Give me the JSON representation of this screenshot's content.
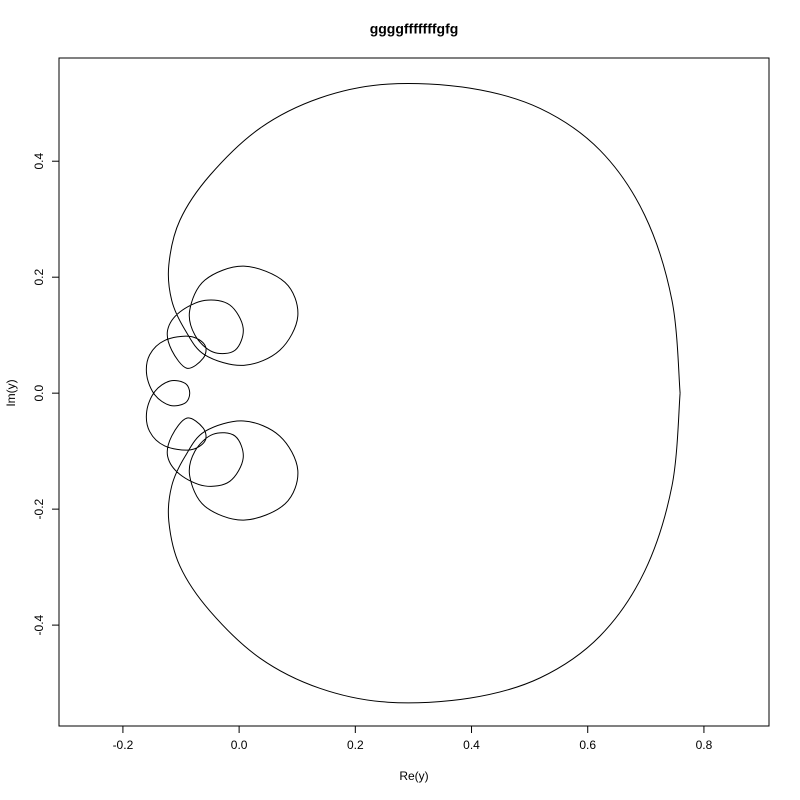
{
  "chart_data": {
    "type": "line",
    "title": "ggggfffffffgfg",
    "x_label": "Re(y)",
    "y_label": "Im(y)",
    "series": [
      {
        "color": "#000000",
        "x": [
          0.759,
          0.745,
          0.698,
          0.621,
          0.518,
          0.397,
          0.256,
          0.139,
          0.036,
          -0.05,
          -0.102,
          -0.121,
          -0.116,
          -0.093,
          -0.059,
          0.008,
          0.07,
          0.101,
          0.079,
          0.008,
          -0.059,
          -0.085,
          -0.076,
          -0.045,
          -0.007,
          0.007,
          -0.016,
          -0.059,
          -0.102,
          -0.123,
          -0.116,
          -0.09,
          -0.062,
          -0.059,
          -0.085,
          -0.128,
          -0.154,
          -0.159,
          -0.145,
          -0.119,
          -0.093,
          -0.085,
          -0.093,
          -0.119,
          -0.145,
          -0.159,
          -0.154,
          -0.128,
          -0.085,
          -0.059,
          -0.062,
          -0.09,
          -0.116,
          -0.123,
          -0.102,
          -0.059,
          -0.016,
          0.007,
          -0.007,
          -0.045,
          -0.076,
          -0.085,
          -0.059,
          0.008,
          0.079,
          0.101,
          0.07,
          0.008,
          -0.059,
          -0.093,
          -0.116,
          -0.121,
          -0.102,
          -0.05,
          0.036,
          0.139,
          0.256,
          0.397,
          0.518,
          0.621,
          0.698,
          0.745,
          0.759
        ],
        "values": [
          0,
          0.16,
          0.307,
          0.419,
          0.491,
          0.526,
          0.533,
          0.509,
          0.457,
          0.376,
          0.298,
          0.221,
          0.16,
          0.109,
          0.066,
          0.048,
          0.074,
          0.133,
          0.191,
          0.219,
          0.195,
          0.143,
          0.1,
          0.071,
          0.074,
          0.112,
          0.152,
          0.16,
          0.14,
          0.109,
          0.074,
          0.043,
          0.06,
          0.083,
          0.098,
          0.091,
          0.066,
          0.031,
          -0.003,
          -0.021,
          -0.017,
          0,
          0.017,
          0.021,
          0.003,
          -0.031,
          -0.066,
          -0.091,
          -0.098,
          -0.083,
          -0.06,
          -0.043,
          -0.074,
          -0.109,
          -0.14,
          -0.16,
          -0.152,
          -0.112,
          -0.074,
          -0.071,
          -0.1,
          -0.143,
          -0.195,
          -0.219,
          -0.191,
          -0.133,
          -0.074,
          -0.048,
          -0.066,
          -0.109,
          -0.16,
          -0.221,
          -0.298,
          -0.376,
          -0.457,
          -0.509,
          -0.533,
          -0.526,
          -0.491,
          -0.419,
          -0.307,
          -0.16,
          0
        ]
      }
    ],
    "xlim": [
      -0.31,
      0.912
    ],
    "ylim": [
      -0.574,
      0.578
    ],
    "xticks": [
      -0.2,
      {
        "value": 0,
        "label": "0.0"
      },
      0.2,
      0.4,
      0.6,
      0.8
    ],
    "yticks": [
      -0.4,
      -0.2,
      {
        "value": 0,
        "label": "0.0"
      },
      0.2,
      0.4
    ],
    "grid": false
  }
}
